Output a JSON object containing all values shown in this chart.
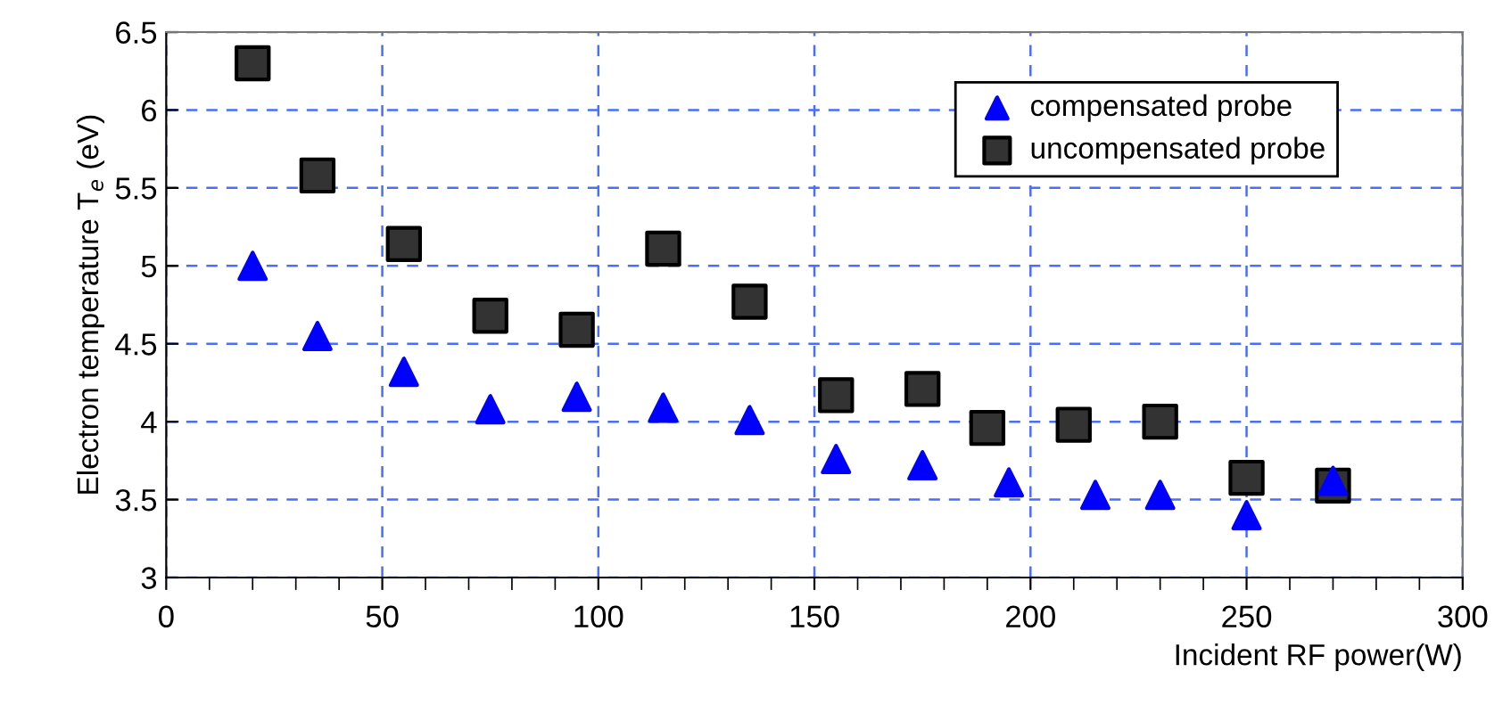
{
  "chart_data": {
    "type": "scatter",
    "xlabel": "Incident RF power(W)",
    "ylabel": "Electron temperature T$_{e}$ (eV)",
    "xlim": [
      0,
      300
    ],
    "ylim": [
      3,
      6.5
    ],
    "xticks": [
      0,
      {
        "value": 10,
        "label": null
      },
      {
        "value": 20,
        "label": null
      },
      {
        "value": 30,
        "label": null
      },
      {
        "value": 40,
        "label": null
      },
      50,
      {
        "value": 60,
        "label": null
      },
      {
        "value": 70,
        "label": null
      },
      {
        "value": 80,
        "label": null
      },
      {
        "value": 90,
        "label": null
      },
      100,
      {
        "value": 110,
        "label": null
      },
      {
        "value": 120,
        "label": null
      },
      {
        "value": 130,
        "label": null
      },
      {
        "value": 140,
        "label": null
      },
      150,
      {
        "value": 160,
        "label": null
      },
      {
        "value": 170,
        "label": null
      },
      {
        "value": 180,
        "label": null
      },
      {
        "value": 190,
        "label": null
      },
      200,
      {
        "value": 210,
        "label": null
      },
      {
        "value": 220,
        "label": null
      },
      {
        "value": 230,
        "label": null
      },
      {
        "value": 240,
        "label": null
      },
      250,
      {
        "value": 260,
        "label": null
      },
      {
        "value": 270,
        "label": null
      },
      {
        "value": 280,
        "label": null
      },
      {
        "value": 290,
        "label": null
      },
      300
    ],
    "yticks": [
      3,
      3.5,
      4,
      4.5,
      5,
      5.5,
      6,
      6.5
    ],
    "grid": true,
    "legend": "top right",
    "series": [
      {
        "name": "compensated probe",
        "color": "#0000ff",
        "marker": "triangle",
        "x": [
          20,
          35,
          55,
          75,
          95,
          115,
          135,
          155,
          175,
          195,
          215,
          230,
          250,
          270
        ],
        "values": [
          5.0,
          4.55,
          4.32,
          4.08,
          4.16,
          4.09,
          4.01,
          3.76,
          3.72,
          3.61,
          3.53,
          3.53,
          3.4,
          3.62
        ]
      },
      {
        "name": "uncompensated probe",
        "color": "#333333",
        "marker": "square",
        "x": [
          20,
          35,
          55,
          75,
          95,
          115,
          135,
          155,
          175,
          190,
          210,
          230,
          250,
          270
        ],
        "values": [
          6.3,
          5.58,
          5.14,
          4.68,
          4.59,
          5.11,
          4.77,
          4.17,
          4.21,
          3.96,
          3.98,
          4.0,
          3.64,
          3.59
        ]
      }
    ]
  }
}
